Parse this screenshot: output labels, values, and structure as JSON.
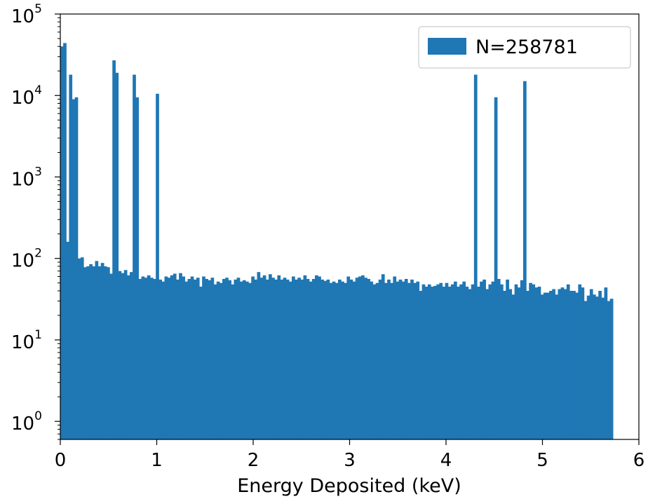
{
  "chart_data": {
    "type": "histogram",
    "xlabel": "Energy Deposited (keV)",
    "ylabel": "",
    "yscale": "log",
    "xlim": [
      0,
      6
    ],
    "ylim": [
      0.6,
      100000
    ],
    "bin_width": 0.03,
    "bar_color": "#1f77b4",
    "grid": false,
    "legend_position": "top-right",
    "x_ticks": [
      {
        "value": 0,
        "label": "0"
      },
      {
        "value": 1,
        "label": "1"
      },
      {
        "value": 2,
        "label": "2"
      },
      {
        "value": 3,
        "label": "3"
      },
      {
        "value": 4,
        "label": "4"
      },
      {
        "value": 5,
        "label": "5"
      },
      {
        "value": 6,
        "label": "6"
      }
    ],
    "y_ticks": [
      {
        "value": 1,
        "base": "10",
        "exp": "0"
      },
      {
        "value": 10,
        "base": "10",
        "exp": "1"
      },
      {
        "value": 100,
        "base": "10",
        "exp": "2"
      },
      {
        "value": 1000,
        "base": "10",
        "exp": "3"
      },
      {
        "value": 10000,
        "base": "10",
        "exp": "4"
      },
      {
        "value": 100000,
        "base": "10",
        "exp": "5"
      }
    ],
    "series": [
      {
        "name": "N=258781",
        "bin_left_edges_start": 0,
        "counts": [
          40000,
          44000,
          160,
          18000,
          9000,
          9500,
          100,
          103,
          78,
          80,
          85,
          80,
          93,
          80,
          88,
          80,
          78,
          65,
          27000,
          19000,
          70,
          66,
          72,
          62,
          68,
          18000,
          9500,
          56,
          60,
          58,
          62,
          58,
          56,
          10500,
          55,
          52,
          60,
          58,
          62,
          65,
          55,
          66,
          60,
          52,
          56,
          60,
          55,
          58,
          45,
          60,
          56,
          54,
          58,
          48,
          52,
          50,
          56,
          58,
          54,
          48,
          55,
          58,
          52,
          54,
          52,
          50,
          60,
          55,
          68,
          58,
          62,
          55,
          64,
          58,
          55,
          62,
          55,
          58,
          55,
          52,
          60,
          55,
          58,
          55,
          62,
          56,
          52,
          56,
          62,
          60,
          55,
          53,
          55,
          50,
          52,
          50,
          55,
          52,
          50,
          60,
          55,
          52,
          58,
          60,
          62,
          58,
          56,
          52,
          48,
          50,
          55,
          64,
          50,
          55,
          50,
          60,
          52,
          55,
          52,
          56,
          50,
          55,
          50,
          52,
          40,
          48,
          45,
          48,
          45,
          46,
          48,
          50,
          45,
          50,
          45,
          48,
          52,
          45,
          48,
          52,
          45,
          42,
          48,
          18000,
          45,
          52,
          55,
          42,
          48,
          52,
          9500,
          56,
          48,
          40,
          55,
          42,
          36,
          48,
          44,
          54,
          15000,
          40,
          50,
          48,
          44,
          45,
          36,
          38,
          38,
          40,
          42,
          36,
          42,
          44,
          42,
          48,
          40,
          40,
          38,
          48,
          44,
          30,
          35,
          42,
          36,
          34,
          40,
          33,
          44,
          30,
          32
        ]
      }
    ]
  }
}
